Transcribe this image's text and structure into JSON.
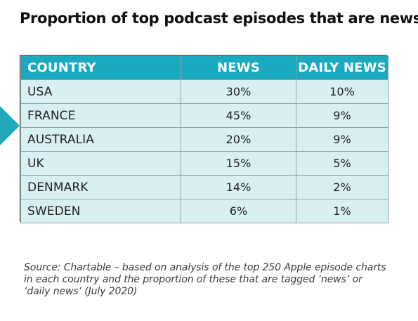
{
  "title": "Proportion of top podcast episodes that are news",
  "accent_color": "#19a9c1",
  "row_fill_color": "#d9f0f2",
  "table": {
    "headers": {
      "country": "COUNTRY",
      "news": "NEWS",
      "daily_news": "DAILY NEWS"
    },
    "rows": [
      {
        "country": "USA",
        "news": "30%",
        "daily_news": "10%"
      },
      {
        "country": "FRANCE",
        "news": "45%",
        "daily_news": "9%"
      },
      {
        "country": "AUSTRALIA",
        "news": "20%",
        "daily_news": "9%"
      },
      {
        "country": "UK",
        "news": "15%",
        "daily_news": "5%"
      },
      {
        "country": "DENMARK",
        "news": "14%",
        "daily_news": "2%"
      },
      {
        "country": "SWEDEN",
        "news": "6%",
        "daily_news": "1%"
      }
    ]
  },
  "source": "Source: Chartable – based on analysis of the top 250 Apple episode charts in each country and the proportion of these that are tagged ‘news’ or ‘daily news’ (July 2020)"
}
